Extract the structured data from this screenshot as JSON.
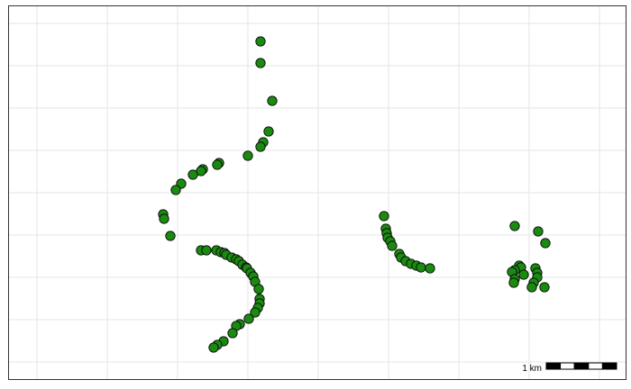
{
  "map": {
    "background": "#ffffff",
    "grid_color": "#e6e6e6",
    "grid": true,
    "point_fill": "#1a8a10",
    "point_stroke": "#0a0a0a",
    "marker": "filled-circle",
    "scale_bar": {
      "label": "1 km",
      "segments": 5,
      "colors": [
        "#000000",
        "#ffffff"
      ]
    },
    "clusters": [
      {
        "name": "western-arc",
        "points": [
          [
            289,
            46
          ],
          [
            289,
            70
          ],
          [
            302,
            112
          ],
          [
            298,
            146
          ],
          [
            292,
            158
          ],
          [
            289,
            163
          ],
          [
            275,
            173
          ],
          [
            243,
            181
          ],
          [
            241,
            183
          ],
          [
            225,
            188
          ],
          [
            223,
            190
          ],
          [
            214,
            194
          ],
          [
            201,
            204
          ],
          [
            195,
            211
          ],
          [
            181,
            238
          ],
          [
            182,
            243
          ],
          [
            189,
            262
          ]
        ]
      },
      {
        "name": "southern-arc",
        "points": [
          [
            223,
            278
          ],
          [
            229,
            278
          ],
          [
            240,
            278
          ],
          [
            245,
            280
          ],
          [
            249,
            281
          ],
          [
            251,
            283
          ],
          [
            257,
            286
          ],
          [
            262,
            288
          ],
          [
            265,
            290
          ],
          [
            269,
            294
          ],
          [
            273,
            297
          ],
          [
            274,
            298
          ],
          [
            278,
            303
          ],
          [
            281,
            307
          ],
          [
            283,
            313
          ],
          [
            287,
            321
          ],
          [
            288,
            332
          ],
          [
            288,
            337
          ],
          [
            286,
            342
          ],
          [
            283,
            347
          ],
          [
            276,
            354
          ],
          [
            266,
            360
          ],
          [
            262,
            362
          ],
          [
            258,
            370
          ],
          [
            248,
            379
          ],
          [
            241,
            383
          ],
          [
            237,
            386
          ]
        ]
      },
      {
        "name": "middle-arc",
        "points": [
          [
            426,
            240
          ],
          [
            428,
            254
          ],
          [
            429,
            259
          ],
          [
            430,
            264
          ],
          [
            433,
            268
          ],
          [
            435,
            273
          ],
          [
            443,
            282
          ],
          [
            445,
            286
          ],
          [
            450,
            290
          ],
          [
            456,
            293
          ],
          [
            462,
            295
          ],
          [
            467,
            297
          ],
          [
            477,
            298
          ]
        ]
      },
      {
        "name": "eastern-cluster",
        "points": [
          [
            571,
            251
          ],
          [
            597,
            257
          ],
          [
            605,
            270
          ],
          [
            576,
            295
          ],
          [
            578,
            297
          ],
          [
            571,
            300
          ],
          [
            568,
            302
          ],
          [
            594,
            298
          ],
          [
            596,
            303
          ],
          [
            581,
            305
          ],
          [
            596,
            308
          ],
          [
            571,
            310
          ],
          [
            570,
            314
          ],
          [
            592,
            314
          ],
          [
            590,
            319
          ],
          [
            604,
            319
          ]
        ]
      }
    ]
  }
}
